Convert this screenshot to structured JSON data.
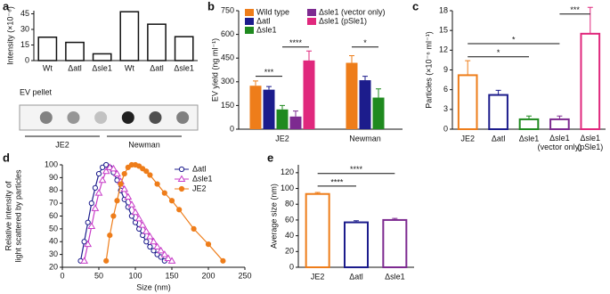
{
  "chart_data": [
    {
      "type": "bar",
      "panel": "a",
      "ylabel": "Intensity (×10⁻⁶)",
      "categories": [
        "Wt",
        "Δatl",
        "Δsle1",
        "Wt",
        "Δatl",
        "Δsle1"
      ],
      "values": [
        22.5,
        17.5,
        6.5,
        47,
        35,
        23
      ],
      "color": "#111111",
      "ylim": [
        0,
        48
      ],
      "yticks": [
        0,
        15,
        30,
        45
      ],
      "blot_label": "EV pellet",
      "groups": [
        "JE2",
        "Newman"
      ]
    },
    {
      "type": "grouped-bar",
      "panel": "b",
      "ylabel": "EV yield (ng ml⁻¹)",
      "categories": [
        "JE2",
        "Newman"
      ],
      "series": [
        {
          "name": "Wild type",
          "color": "#ee7d1a",
          "values": [
            275,
            420
          ],
          "errors": [
            30,
            45
          ]
        },
        {
          "name": "Δatl",
          "color": "#1c1c8c",
          "values": [
            250,
            310
          ],
          "errors": [
            20,
            25
          ]
        },
        {
          "name": "Δsle1",
          "color": "#1f8a1f",
          "values": [
            125,
            200
          ],
          "errors": [
            25,
            55
          ]
        },
        {
          "name": "Δsle1 (vector only)",
          "color": "#7d2a90",
          "values": [
            80,
            null
          ],
          "errors": [
            35,
            null
          ]
        },
        {
          "name": "Δsle1 (pSle1)",
          "color": "#e0287d",
          "values": [
            435,
            null
          ],
          "errors": [
            60,
            null
          ]
        }
      ],
      "ylim": [
        0,
        750
      ],
      "yticks": [
        0,
        150,
        300,
        450,
        600,
        750
      ],
      "annotations": [
        "***",
        "****",
        "*"
      ]
    },
    {
      "type": "open-bar",
      "panel": "c",
      "ylabel": "Particles (×10⁻⁶ ml⁻¹)",
      "categories": [
        "JE2",
        "Δatl",
        "Δsle1",
        "Δsle1 (vector only)",
        "Δsle1 (pSle1)"
      ],
      "values": [
        8.2,
        5.2,
        1.5,
        1.5,
        14.5
      ],
      "errors": [
        2.2,
        0.7,
        0.5,
        0.5,
        4
      ],
      "colors": [
        "#ee7d1a",
        "#1c1c8c",
        "#1f8a1f",
        "#7d2a90",
        "#e0287d"
      ],
      "ylim": [
        0,
        18
      ],
      "yticks": [
        0,
        3,
        6,
        9,
        12,
        15,
        18
      ],
      "annotations": [
        "*",
        "*",
        "***"
      ]
    },
    {
      "type": "line",
      "panel": "d",
      "ylabel": [
        "Relative intensity of",
        "light scattered by particles"
      ],
      "xlabel": "Size (nm)",
      "series": [
        {
          "name": "Δatl",
          "color": "#1c1c8c",
          "marker": "circle-open",
          "x": [
            25,
            30,
            35,
            40,
            45,
            50,
            55,
            60,
            65,
            70,
            75,
            80,
            85,
            90,
            95,
            100,
            105,
            110,
            115,
            120,
            125,
            130,
            135,
            140
          ],
          "values": [
            25,
            40,
            55,
            70,
            82,
            93,
            98,
            100,
            98,
            94,
            88,
            80,
            73,
            67,
            60,
            55,
            50,
            45,
            40,
            36,
            33,
            30,
            28,
            25
          ]
        },
        {
          "name": "Δsle1",
          "color": "#c83cc8",
          "marker": "triangle-open",
          "x": [
            30,
            35,
            40,
            45,
            50,
            55,
            60,
            65,
            70,
            75,
            80,
            85,
            90,
            95,
            100,
            105,
            110,
            115,
            120,
            125,
            130,
            135,
            140,
            145,
            150
          ],
          "values": [
            25,
            38,
            52,
            66,
            78,
            88,
            95,
            98,
            97,
            93,
            87,
            81,
            75,
            69,
            63,
            58,
            53,
            48,
            44,
            40,
            36,
            33,
            30,
            27,
            25
          ]
        },
        {
          "name": "JE2",
          "color": "#ee7d1a",
          "marker": "circle",
          "x": [
            60,
            65,
            70,
            75,
            80,
            85,
            90,
            95,
            100,
            105,
            110,
            115,
            120,
            130,
            140,
            150,
            160,
            180,
            200,
            220
          ],
          "values": [
            25,
            45,
            60,
            72,
            85,
            93,
            98,
            100,
            100,
            99,
            97,
            95,
            92,
            85,
            78,
            72,
            65,
            50,
            38,
            25
          ]
        }
      ],
      "xlim": [
        0,
        250
      ],
      "xticks": [
        0,
        50,
        100,
        150,
        200,
        250
      ],
      "ylim": [
        20,
        100
      ],
      "yticks": [
        20,
        30,
        40,
        50,
        60,
        70,
        80,
        90,
        100
      ]
    },
    {
      "type": "open-bar",
      "panel": "e",
      "ylabel": "Average size (nm)",
      "categories": [
        "JE2",
        "Δatl",
        "Δsle1"
      ],
      "values": [
        93,
        57,
        60
      ],
      "errors": [
        2,
        2,
        2
      ],
      "colors": [
        "#ee7d1a",
        "#1c1c8c",
        "#7d2a90"
      ],
      "ylim": [
        0,
        130
      ],
      "yticks": [
        0,
        20,
        40,
        60,
        80,
        100,
        120
      ],
      "annotations": [
        "****",
        "****"
      ]
    }
  ]
}
